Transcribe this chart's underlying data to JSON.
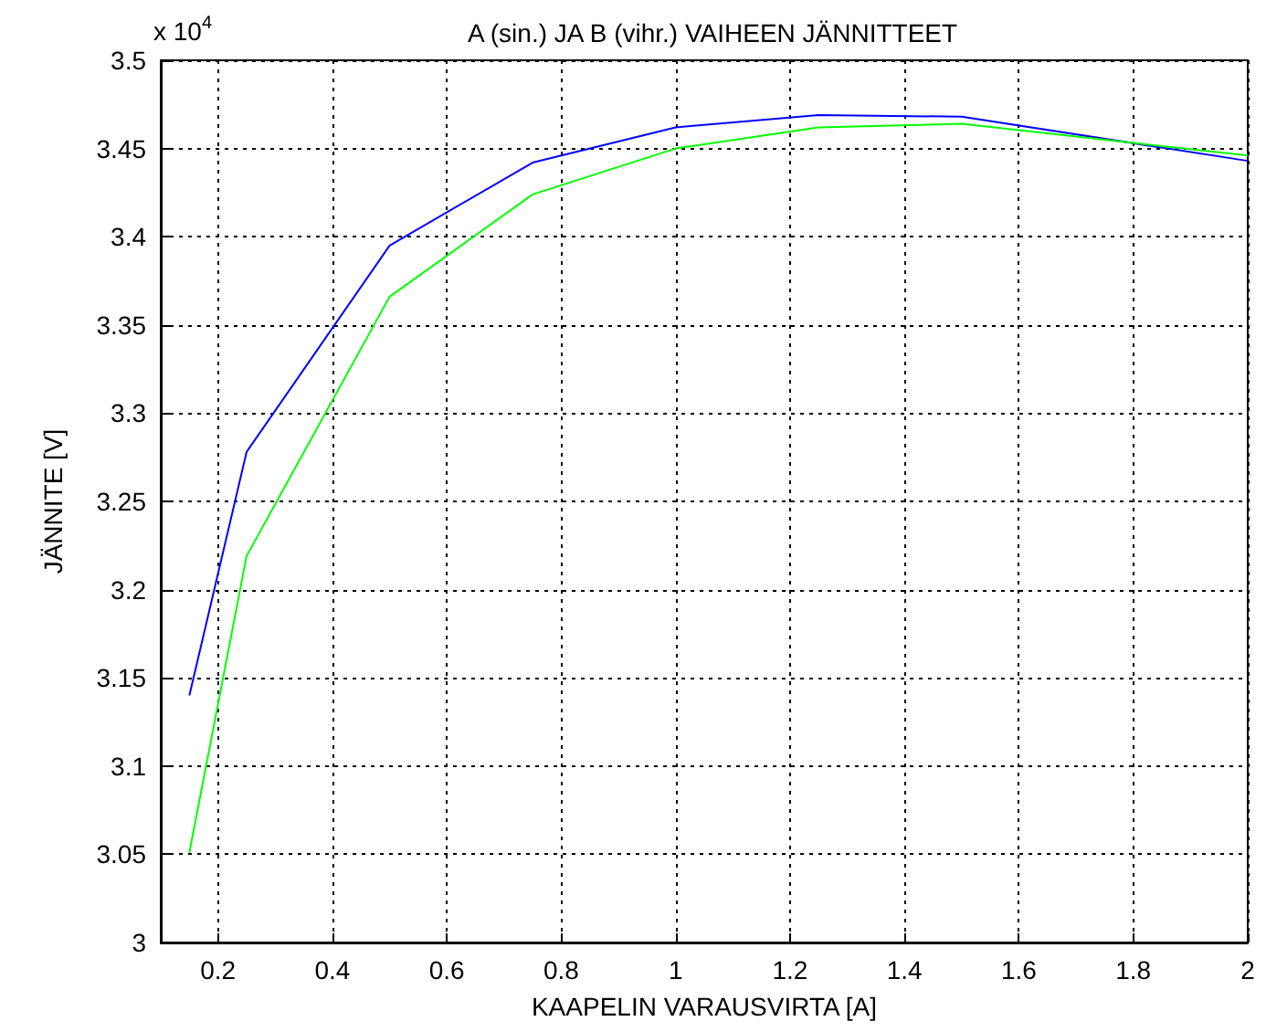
{
  "chart_data": {
    "type": "line",
    "title": "A (sin.) JA B (vihr.) VAIHEEN JÄNNITTEET",
    "xlabel": "KAAPELIN VARAUSVIRTA [A]",
    "ylabel": "JÄNNITE [V]",
    "annotations": [
      "x 10$^{4}$"
    ],
    "x": [
      0.15,
      0.25,
      0.5,
      0.75,
      1,
      1.25,
      1.5,
      2
    ],
    "series": [
      {
        "color": "#0000ff",
        "values": [
          3.14,
          3.278,
          3.395,
          3.442,
          3.462,
          3.469,
          3.468,
          3.443
        ]
      },
      {
        "color": "#00ff00",
        "values": [
          3.051,
          3.219,
          3.366,
          3.424,
          3.45,
          3.462,
          3.464,
          3.446
        ]
      }
    ],
    "xlim": [
      0.1,
      2
    ],
    "xticks": [
      0.2,
      0.4,
      0.6,
      0.8,
      1,
      1.2,
      1.4,
      1.6,
      1.8,
      2
    ],
    "ylim": [
      3,
      3.5
    ],
    "yticks": [
      3,
      3.05,
      3.1,
      3.15,
      3.2,
      3.25,
      3.3,
      3.35,
      3.4,
      3.45,
      3.5
    ],
    "grid": true,
    "marker": "none",
    "line_style": "solid"
  }
}
